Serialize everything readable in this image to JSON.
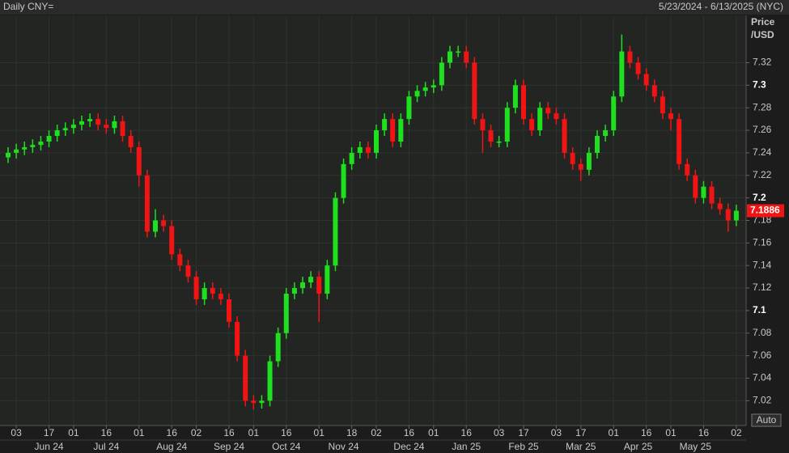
{
  "chart_data": {
    "type": "candlestick",
    "title": "Daily CNY=",
    "subtitle": "5/23/2024 - 6/13/2025 (NYC)",
    "y_label": [
      "Price",
      "/USD"
    ],
    "button": "Auto",
    "up_color": "#1ee01e",
    "down_color": "#f01414",
    "grid": true,
    "ylim": [
      6.998,
      7.362
    ],
    "yticks": [
      7.02,
      7.04,
      7.06,
      7.08,
      7.1,
      7.12,
      7.14,
      7.16,
      7.18,
      7.2,
      7.22,
      7.24,
      7.26,
      7.28,
      7.3,
      7.32
    ],
    "categories": [
      null,
      "03",
      null,
      null,
      null,
      "17",
      null,
      null,
      "01",
      null,
      null,
      null,
      "16",
      null,
      null,
      null,
      "01",
      null,
      null,
      null,
      "16",
      null,
      null,
      "02",
      null,
      null,
      null,
      "16",
      null,
      null,
      "01",
      null,
      null,
      null,
      "16",
      null,
      null,
      null,
      "01",
      null,
      null,
      null,
      "18",
      null,
      null,
      "02",
      null,
      null,
      null,
      "16",
      null,
      null,
      "01",
      null,
      null,
      null,
      "16",
      null,
      null,
      null,
      "03",
      null,
      null,
      "17",
      null,
      null,
      null,
      "03",
      null,
      null,
      "17",
      null,
      null,
      null,
      "01",
      null,
      null,
      null,
      "16",
      null,
      null,
      "01",
      null,
      null,
      null,
      "16",
      null,
      null,
      null,
      "02"
    ],
    "months": [
      null,
      null,
      null,
      null,
      null,
      "Jun 24",
      null,
      null,
      null,
      null,
      null,
      null,
      "Jul 24",
      null,
      null,
      null,
      null,
      null,
      null,
      null,
      "Aug 24",
      null,
      null,
      null,
      null,
      null,
      null,
      "Sep 24",
      null,
      null,
      null,
      null,
      null,
      null,
      "Oct 24",
      null,
      null,
      null,
      null,
      null,
      null,
      "Nov 24",
      null,
      null,
      null,
      null,
      null,
      null,
      null,
      "Dec 24",
      null,
      null,
      null,
      null,
      null,
      null,
      "Jan 25",
      null,
      null,
      null,
      null,
      null,
      null,
      "Feb 25",
      null,
      null,
      null,
      null,
      null,
      null,
      "Mar 25",
      null,
      null,
      null,
      null,
      null,
      null,
      "Apr 25",
      null,
      null,
      null,
      null,
      null,
      null,
      "May 25",
      null,
      null,
      null,
      null,
      null
    ],
    "open": [
      7.236,
      7.24,
      7.243,
      7.245,
      7.247,
      7.25,
      7.255,
      7.26,
      7.262,
      7.265,
      7.268,
      7.27,
      7.265,
      7.262,
      7.268,
      7.255,
      7.245,
      7.22,
      7.17,
      7.18,
      7.175,
      7.15,
      7.14,
      7.13,
      7.11,
      7.12,
      7.115,
      7.11,
      7.09,
      7.06,
      7.02,
      7.018,
      7.02,
      7.055,
      7.08,
      7.115,
      7.12,
      7.125,
      7.13,
      7.115,
      7.14,
      7.2,
      7.23,
      7.24,
      7.245,
      7.24,
      7.26,
      7.27,
      7.25,
      7.27,
      7.29,
      7.295,
      7.298,
      7.3,
      7.32,
      7.33,
      7.33,
      7.32,
      7.27,
      7.26,
      7.25,
      7.25,
      7.28,
      7.3,
      7.27,
      7.26,
      7.28,
      7.275,
      7.27,
      7.24,
      7.23,
      7.225,
      7.24,
      7.255,
      7.26,
      7.29,
      7.33,
      7.32,
      7.31,
      7.3,
      7.29,
      7.275,
      7.27,
      7.23,
      7.22,
      7.2,
      7.21,
      7.195,
      7.19,
      7.18
    ],
    "high": [
      7.245,
      7.248,
      7.25,
      7.252,
      7.255,
      7.26,
      7.265,
      7.267,
      7.27,
      7.273,
      7.275,
      7.275,
      7.27,
      7.273,
      7.273,
      7.26,
      7.25,
      7.225,
      7.19,
      7.185,
      7.18,
      7.155,
      7.145,
      7.135,
      7.125,
      7.125,
      7.12,
      7.115,
      7.095,
      7.065,
      7.025,
      7.025,
      7.06,
      7.085,
      7.12,
      7.125,
      7.13,
      7.135,
      7.135,
      7.145,
      7.205,
      7.235,
      7.245,
      7.25,
      7.25,
      7.265,
      7.275,
      7.275,
      7.275,
      7.295,
      7.3,
      7.303,
      7.305,
      7.325,
      7.335,
      7.335,
      7.335,
      7.325,
      7.275,
      7.265,
      7.255,
      7.285,
      7.305,
      7.305,
      7.275,
      7.285,
      7.285,
      7.28,
      7.275,
      7.245,
      7.235,
      7.245,
      7.26,
      7.265,
      7.295,
      7.345,
      7.335,
      7.325,
      7.315,
      7.305,
      7.295,
      7.28,
      7.275,
      7.235,
      7.225,
      7.215,
      7.215,
      7.2,
      7.195,
      7.194
    ],
    "low": [
      7.231,
      7.235,
      7.238,
      7.24,
      7.242,
      7.245,
      7.25,
      7.255,
      7.257,
      7.26,
      7.263,
      7.26,
      7.257,
      7.257,
      7.25,
      7.24,
      7.21,
      7.165,
      7.165,
      7.17,
      7.145,
      7.135,
      7.125,
      7.105,
      7.105,
      7.11,
      7.105,
      7.085,
      7.055,
      7.015,
      7.012,
      7.013,
      7.015,
      7.05,
      7.075,
      7.11,
      7.115,
      7.12,
      7.09,
      7.11,
      7.135,
      7.195,
      7.225,
      7.235,
      7.235,
      7.235,
      7.255,
      7.245,
      7.245,
      7.265,
      7.285,
      7.29,
      7.293,
      7.295,
      7.315,
      7.325,
      7.315,
      7.265,
      7.24,
      7.245,
      7.245,
      7.245,
      7.275,
      7.265,
      7.255,
      7.255,
      7.27,
      7.265,
      7.235,
      7.225,
      7.215,
      7.22,
      7.235,
      7.25,
      7.255,
      7.285,
      7.315,
      7.305,
      7.295,
      7.285,
      7.27,
      7.26,
      7.225,
      7.215,
      7.195,
      7.195,
      7.19,
      7.185,
      7.17,
      7.175
    ],
    "close": [
      7.24,
      7.243,
      7.245,
      7.247,
      7.25,
      7.255,
      7.26,
      7.262,
      7.265,
      7.268,
      7.27,
      7.265,
      7.262,
      7.268,
      7.255,
      7.245,
      7.22,
      7.17,
      7.18,
      7.175,
      7.15,
      7.14,
      7.13,
      7.11,
      7.12,
      7.115,
      7.11,
      7.09,
      7.06,
      7.02,
      7.018,
      7.02,
      7.055,
      7.08,
      7.115,
      7.12,
      7.125,
      7.13,
      7.115,
      7.14,
      7.2,
      7.23,
      7.24,
      7.245,
      7.24,
      7.26,
      7.27,
      7.25,
      7.27,
      7.29,
      7.295,
      7.298,
      7.3,
      7.32,
      7.33,
      7.33,
      7.32,
      7.27,
      7.26,
      7.25,
      7.25,
      7.28,
      7.3,
      7.27,
      7.26,
      7.28,
      7.275,
      7.27,
      7.24,
      7.23,
      7.225,
      7.24,
      7.255,
      7.26,
      7.29,
      7.33,
      7.32,
      7.31,
      7.3,
      7.29,
      7.275,
      7.27,
      7.23,
      7.22,
      7.2,
      7.21,
      7.195,
      7.19,
      7.18,
      7.1886
    ]
  }
}
